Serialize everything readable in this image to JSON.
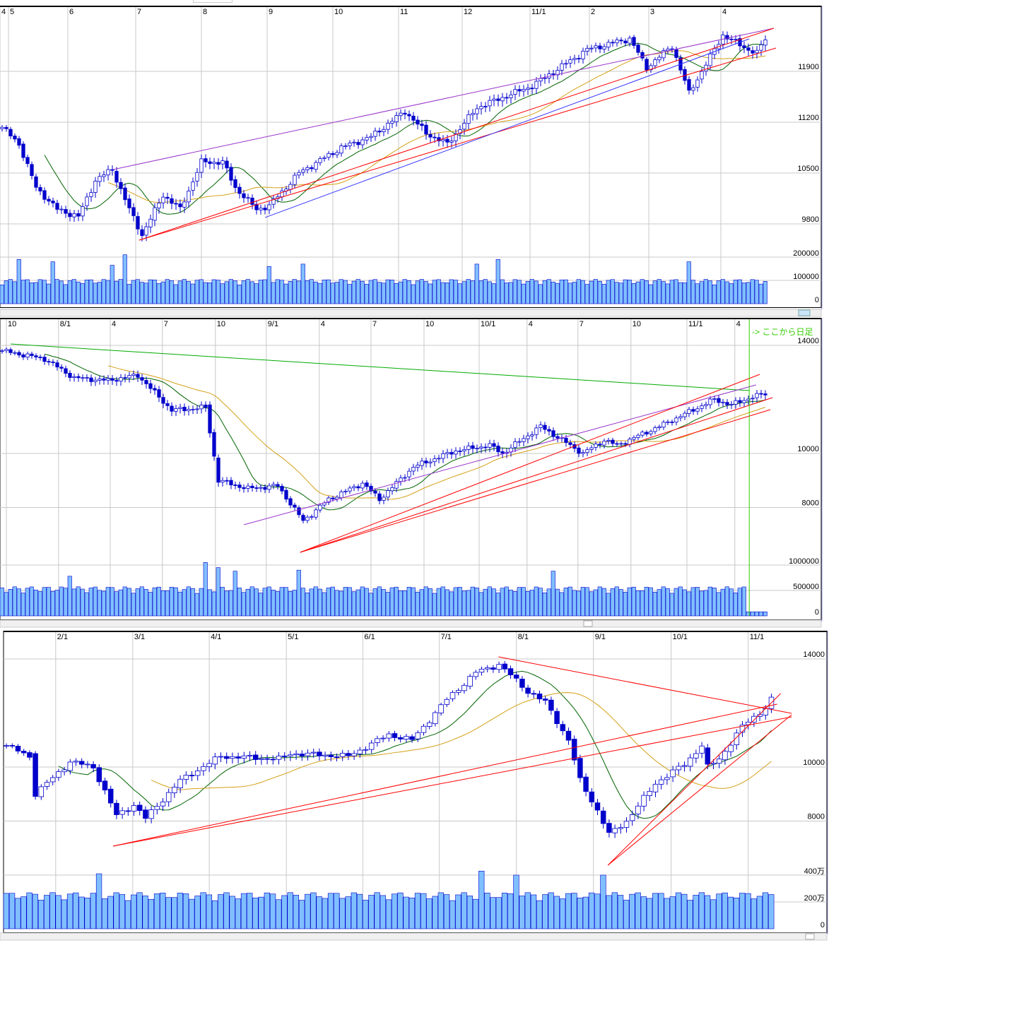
{
  "colors": {
    "candle": "#0000cc",
    "volume_fill": "#80bfff",
    "volume_edge": "#0000cc",
    "grid": "#c8c8c8",
    "ma_short": "#006400",
    "ma_long": "#d4a017",
    "trend_red": "#ff0000",
    "trend_purple": "#9933cc",
    "trend_blue": "#3333ff",
    "trend_green": "#00aa00",
    "marker": "#33cc00"
  },
  "chart_data": [
    {
      "type": "candlestick",
      "name": "hourly",
      "n_bars": 181,
      "x_ticks": [
        {
          "label": "4",
          "bar": 0
        },
        {
          "label": "5",
          "bar": 2
        },
        {
          "label": "6",
          "bar": 16
        },
        {
          "label": "7",
          "bar": 32
        },
        {
          "label": "8",
          "bar": 47.5
        },
        {
          "label": "9",
          "bar": 63
        },
        {
          "label": "10",
          "bar": 78.5
        },
        {
          "label": "11",
          "bar": 94
        },
        {
          "label": "12",
          "bar": 109
        },
        {
          "label": "11/1",
          "bar": 125
        },
        {
          "label": "2",
          "bar": 139
        },
        {
          "label": "3",
          "bar": 153
        },
        {
          "label": "4",
          "bar": 170
        }
      ],
      "y_ticks": [
        9800,
        10500,
        11200,
        11900
      ],
      "ylim": [
        9000,
        12880
      ],
      "vol_ticks": [
        "0",
        "100000",
        "200000"
      ],
      "vol_values": [
        0,
        100000,
        200000
      ],
      "vol_max": 260000,
      "vol_base": 95000,
      "close_keypoints": [
        [
          0,
          11130
        ],
        [
          4,
          10900
        ],
        [
          8,
          10300
        ],
        [
          13,
          10000
        ],
        [
          18,
          9900
        ],
        [
          22,
          10400
        ],
        [
          26,
          10550
        ],
        [
          30,
          10000
        ],
        [
          33,
          9650
        ],
        [
          38,
          10200
        ],
        [
          42,
          10000
        ],
        [
          47,
          10650
        ],
        [
          52,
          10650
        ],
        [
          55,
          10300
        ],
        [
          60,
          10000
        ],
        [
          63,
          10050
        ],
        [
          70,
          10500
        ],
        [
          80,
          10850
        ],
        [
          87,
          11000
        ],
        [
          95,
          11350
        ],
        [
          100,
          11050
        ],
        [
          105,
          10900
        ],
        [
          112,
          11400
        ],
        [
          125,
          11700
        ],
        [
          138,
          12200
        ],
        [
          148,
          12350
        ],
        [
          152,
          11950
        ],
        [
          158,
          12250
        ],
        [
          162,
          11600
        ],
        [
          170,
          12400
        ],
        [
          176,
          12200
        ],
        [
          178,
          12150
        ],
        [
          181,
          12450
        ]
      ],
      "vol_spikes": [
        [
          4,
          190000
        ],
        [
          12,
          180000
        ],
        [
          26,
          165000
        ],
        [
          29,
          210000
        ],
        [
          63,
          160000
        ],
        [
          71,
          170000
        ],
        [
          112,
          170000
        ],
        [
          117,
          190000
        ],
        [
          162,
          180000
        ]
      ],
      "trendlines": [
        {
          "color": "trend_purple",
          "p": [
            [
              26.7,
              10549
            ],
            [
              182.5,
              12493
            ]
          ]
        },
        {
          "color": "trend_red",
          "p": [
            [
              32.8,
              9576
            ],
            [
              182.5,
              12493
            ]
          ]
        },
        {
          "color": "trend_red",
          "p": [
            [
              32.8,
              9576
            ],
            [
              183,
              12221
            ]
          ]
        },
        {
          "color": "trend_blue",
          "p": [
            [
              62.5,
              9888
            ],
            [
              176.7,
              12347
            ]
          ]
        }
      ]
    },
    {
      "type": "candlestick",
      "name": "half-daily",
      "n_bars": 181,
      "x_ticks": [
        {
          "label": "10",
          "bar": 1.5
        },
        {
          "label": "8/1",
          "bar": 13.8
        },
        {
          "label": "4",
          "bar": 26
        },
        {
          "label": "7",
          "bar": 38.3
        },
        {
          "label": "10",
          "bar": 50.8
        },
        {
          "label": "9/1",
          "bar": 62.8
        },
        {
          "label": "4",
          "bar": 75.3
        },
        {
          "label": "7",
          "bar": 87.5
        },
        {
          "label": "10",
          "bar": 100
        },
        {
          "label": "10/1",
          "bar": 113
        },
        {
          "label": "4",
          "bar": 124.3
        },
        {
          "label": "7",
          "bar": 136.3
        },
        {
          "label": "10",
          "bar": 148.8
        },
        {
          "label": "11/1",
          "bar": 162
        },
        {
          "label": "4",
          "bar": 173.3
        }
      ],
      "y_ticks": [
        8000,
        10000,
        14000
      ],
      "ylim": [
        6150,
        14750
      ],
      "vol_ticks": [
        "0",
        "500000",
        "1000000"
      ],
      "vol_values": [
        0,
        500000,
        1000000
      ],
      "vol_max": 1180000,
      "vol_base": 520000,
      "close_keypoints": [
        [
          0,
          13800
        ],
        [
          10,
          13500
        ],
        [
          17,
          12800
        ],
        [
          25,
          12700
        ],
        [
          32,
          12900
        ],
        [
          40,
          11600
        ],
        [
          48,
          11700
        ],
        [
          51,
          9000
        ],
        [
          58,
          8700
        ],
        [
          65,
          8800
        ],
        [
          71,
          7500
        ],
        [
          77,
          8300
        ],
        [
          85,
          8900
        ],
        [
          89,
          8300
        ],
        [
          97,
          9500
        ],
        [
          107,
          10100
        ],
        [
          115,
          10300
        ],
        [
          118,
          10000
        ],
        [
          127,
          11000
        ],
        [
          137,
          10000
        ],
        [
          142,
          10500
        ],
        [
          145,
          10300
        ],
        [
          155,
          11000
        ],
        [
          168,
          12000
        ],
        [
          172,
          11800
        ],
        [
          177,
          12100
        ],
        [
          180,
          12200
        ]
      ],
      "vol_spikes": [
        [
          16,
          780000
        ],
        [
          48,
          1050000
        ],
        [
          51,
          950000
        ],
        [
          55,
          880000
        ],
        [
          70,
          900000
        ],
        [
          130,
          880000
        ]
      ],
      "vol_tail_from": 176,
      "vol_tail": 80000,
      "marker": {
        "bar": 176.7,
        "label": "-> ここから日足"
      },
      "trendlines": [
        {
          "color": "trend_green",
          "p": [
            [
              2.5,
              14052
            ],
            [
              176.7,
              12327
            ]
          ]
        },
        {
          "color": "trend_purple",
          "p": [
            [
              57.5,
              7360
            ],
            [
              178.3,
              12536
            ]
          ]
        },
        {
          "color": "trend_red",
          "p": [
            [
              70.8,
              6340
            ],
            [
              179.2,
              12928
            ]
          ]
        },
        {
          "color": "trend_red",
          "p": [
            [
              70.8,
              6340
            ],
            [
              181.7,
              11621
            ]
          ]
        },
        {
          "color": "trend_red",
          "p": [
            [
              70.8,
              6340
            ],
            [
              182.2,
              12065
            ]
          ]
        }
      ]
    },
    {
      "type": "candlestick",
      "name": "daily",
      "n_bars": 133,
      "x_ticks": [
        {
          "label": "2/1",
          "bar": 9
        },
        {
          "label": "3/1",
          "bar": 22.3
        },
        {
          "label": "4/1",
          "bar": 35.5
        },
        {
          "label": "5/1",
          "bar": 48.8
        },
        {
          "label": "6/1",
          "bar": 62
        },
        {
          "label": "7/1",
          "bar": 75.2
        },
        {
          "label": "8/1",
          "bar": 88.5
        },
        {
          "label": "9/1",
          "bar": 101.8
        },
        {
          "label": "10/1",
          "bar": 115.2
        },
        {
          "label": "11/1",
          "bar": 128.5
        }
      ],
      "y_ticks": [
        8000,
        10000,
        14000
      ],
      "ylim": [
        5600,
        14900
      ],
      "vol_ticks": [
        "0",
        "200万",
        "400万"
      ],
      "vol_values": [
        0,
        2000000,
        4000000
      ],
      "vol_max": 4400000,
      "vol_base": 2450000,
      "close_keypoints": [
        [
          0,
          10800
        ],
        [
          4,
          10400
        ],
        [
          5,
          9000
        ],
        [
          11,
          10200
        ],
        [
          15,
          10000
        ],
        [
          19,
          8200
        ],
        [
          22,
          8600
        ],
        [
          24,
          8100
        ],
        [
          30,
          9500
        ],
        [
          37,
          10400
        ],
        [
          47,
          10300
        ],
        [
          49,
          10500
        ],
        [
          59,
          10400
        ],
        [
          66,
          11200
        ],
        [
          70,
          11000
        ],
        [
          76,
          12500
        ],
        [
          81,
          13500
        ],
        [
          85,
          13800
        ],
        [
          90,
          12800
        ],
        [
          93,
          12400
        ],
        [
          97,
          11000
        ],
        [
          99,
          9500
        ],
        [
          102,
          8400
        ],
        [
          104,
          7500
        ],
        [
          107,
          8000
        ],
        [
          112,
          9400
        ],
        [
          117,
          10100
        ],
        [
          120,
          10800
        ],
        [
          121,
          10000
        ],
        [
          123,
          10300
        ],
        [
          127,
          11500
        ],
        [
          131,
          12200
        ],
        [
          132,
          12500
        ]
      ],
      "vol_spikes": [
        [
          16,
          4100000
        ],
        [
          82,
          4300000
        ],
        [
          88,
          4000000
        ],
        [
          103,
          4000000
        ]
      ],
      "trendlines": [
        {
          "color": "trend_red",
          "p": [
            [
              85.4,
              14078
            ],
            [
              136,
              11987
            ]
          ]
        },
        {
          "color": "trend_red",
          "p": [
            [
              18.9,
              7072
            ],
            [
              136,
              11856
            ]
          ]
        },
        {
          "color": "trend_red",
          "p": [
            [
              18.9,
              7072
            ],
            [
              133.5,
              12327
            ]
          ]
        },
        {
          "color": "trend_red",
          "p": [
            [
              104.3,
              6366
            ],
            [
              134.1,
              12719
            ]
          ]
        },
        {
          "color": "trend_red",
          "p": [
            [
              104.3,
              6366
            ],
            [
              136,
              11935
            ]
          ]
        }
      ]
    }
  ]
}
